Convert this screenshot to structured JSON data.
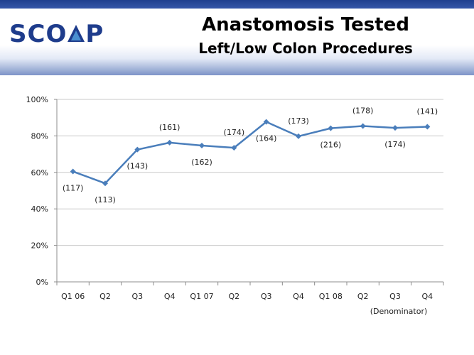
{
  "header": {
    "logo": {
      "prefix": "SCO",
      "suffix": "P",
      "brand_color": "#1e3c8c",
      "accent_color": "#4a8fd0"
    },
    "title": "Anastomosis Tested",
    "subtitle": "Left/Low Colon Procedures"
  },
  "chart_data": {
    "type": "line",
    "categories": [
      "Q1 06",
      "Q2",
      "Q3",
      "Q4",
      "Q1 07",
      "Q2",
      "Q3",
      "Q4",
      "Q1 08",
      "Q2",
      "Q3",
      "Q4"
    ],
    "series": [
      {
        "values": [
          60.5,
          54,
          72.5,
          76.3,
          74.7,
          73.5,
          87.7,
          79.8,
          84.2,
          85.4,
          84.4,
          85.0
        ],
        "data_labels": [
          "(117)",
          "(113)",
          "(143)",
          "(161)",
          "(162)",
          "(174)",
          "(164)",
          "(173)",
          "(216)",
          "(178)",
          "(174)",
          "(141)"
        ],
        "label_side": [
          "below",
          "below",
          "below",
          "above",
          "below",
          "above",
          "below",
          "above",
          "below",
          "above",
          "below",
          "above"
        ],
        "color": "#4a7ebb"
      }
    ],
    "ylim": [
      0,
      100
    ],
    "yticks": [
      "0%",
      "20%",
      "40%",
      "60%",
      "80%",
      "100%"
    ],
    "ytick_values": [
      0,
      20,
      40,
      60,
      80,
      100
    ],
    "grid": true,
    "annotation": "(Denominator)"
  }
}
